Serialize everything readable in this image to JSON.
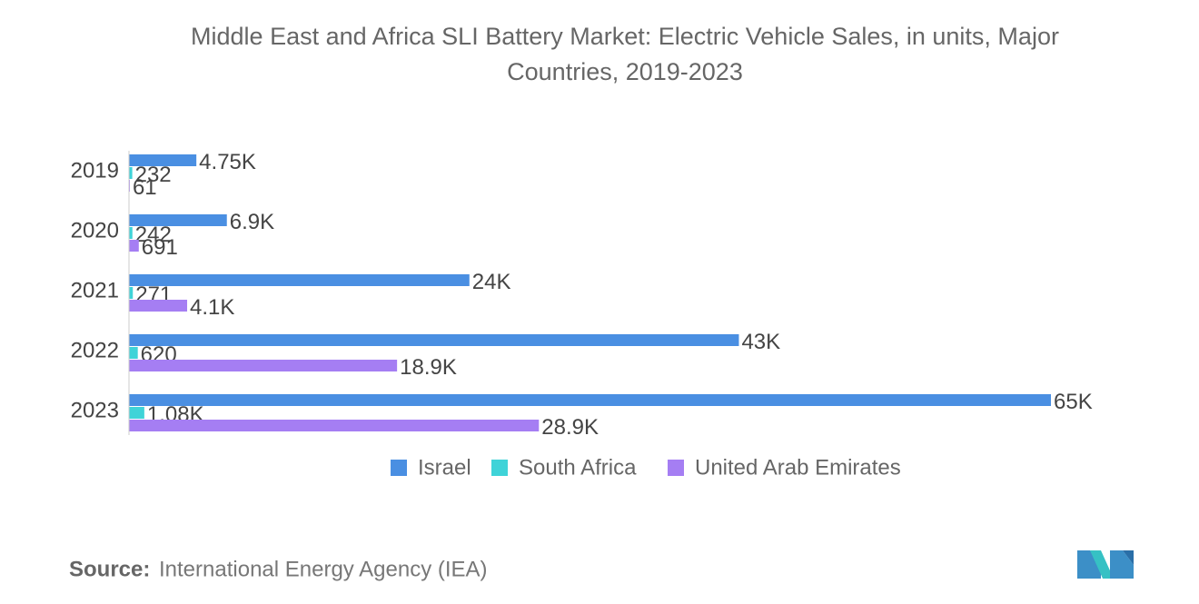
{
  "chart_data": {
    "type": "hbar",
    "title_lines": [
      "Middle East and Africa SLI Battery Market: Electric Vehicle Sales, in units, Major",
      "Countries, 2019-2023"
    ],
    "categories": [
      "2019",
      "2020",
      "2021",
      "2022",
      "2023"
    ],
    "series": [
      {
        "name": "Israel",
        "color": "#4a8fe2",
        "values": [
          4750,
          6900,
          24000,
          43000,
          65000
        ],
        "value_labels": [
          "4.75K",
          "6.9K",
          "24K",
          "43K",
          "65K"
        ]
      },
      {
        "name": "South Africa",
        "color": "#3fd3d8",
        "values": [
          232,
          242,
          271,
          620,
          1080
        ],
        "value_labels": [
          "232",
          "242",
          "271",
          "620",
          "1.08K"
        ]
      },
      {
        "name": "United Arab Emirates",
        "color": "#a57ef3",
        "values": [
          61,
          691,
          4100,
          18900,
          28900
        ],
        "value_labels": [
          "61",
          "691",
          "4.1K",
          "18.9K",
          "28.9K"
        ]
      }
    ],
    "legend": "bottom",
    "source_label": "Source:",
    "source": "International Energy Agency (IEA)"
  }
}
